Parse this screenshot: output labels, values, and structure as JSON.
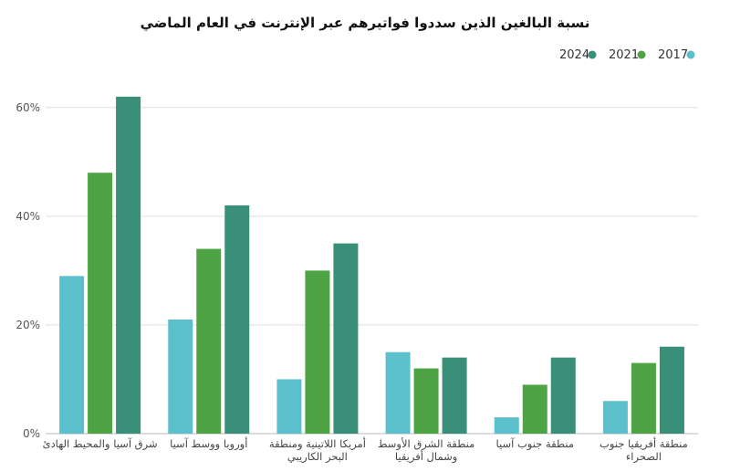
{
  "chart_data": {
    "type": "bar",
    "title": "نسبة البالغين الذين سددوا فواتيرهم عبر الإنترنت في العام الماضي",
    "categories": [
      [
        "شرق آسيا والمحيط الهادئ"
      ],
      [
        "أوروبا ووسط آسيا"
      ],
      [
        "أمريكا اللاتينية ومنطقة",
        "البحر الكاريبي"
      ],
      [
        "منطقة الشرق الأوسط",
        "وشمال أفريقيا"
      ],
      [
        "منطقة جنوب آسيا"
      ],
      [
        "منطقة أفريقيا جنوب",
        "الصحراء"
      ]
    ],
    "series": [
      {
        "name": "2017",
        "color": "#5bc0cc",
        "values": [
          29,
          21,
          10,
          15,
          3,
          6
        ]
      },
      {
        "name": "2021",
        "color": "#4ea344",
        "values": [
          48,
          34,
          30,
          12,
          9,
          13
        ]
      },
      {
        "name": "2024",
        "color": "#3a8f79",
        "values": [
          62,
          42,
          35,
          14,
          14,
          16
        ]
      }
    ],
    "yticks": [
      0,
      20,
      40,
      60
    ],
    "ytick_labels": [
      "0%",
      "20%",
      "40%",
      "60%"
    ],
    "ylim": [
      0,
      65
    ],
    "grid": true,
    "legend_position": "top-right"
  }
}
